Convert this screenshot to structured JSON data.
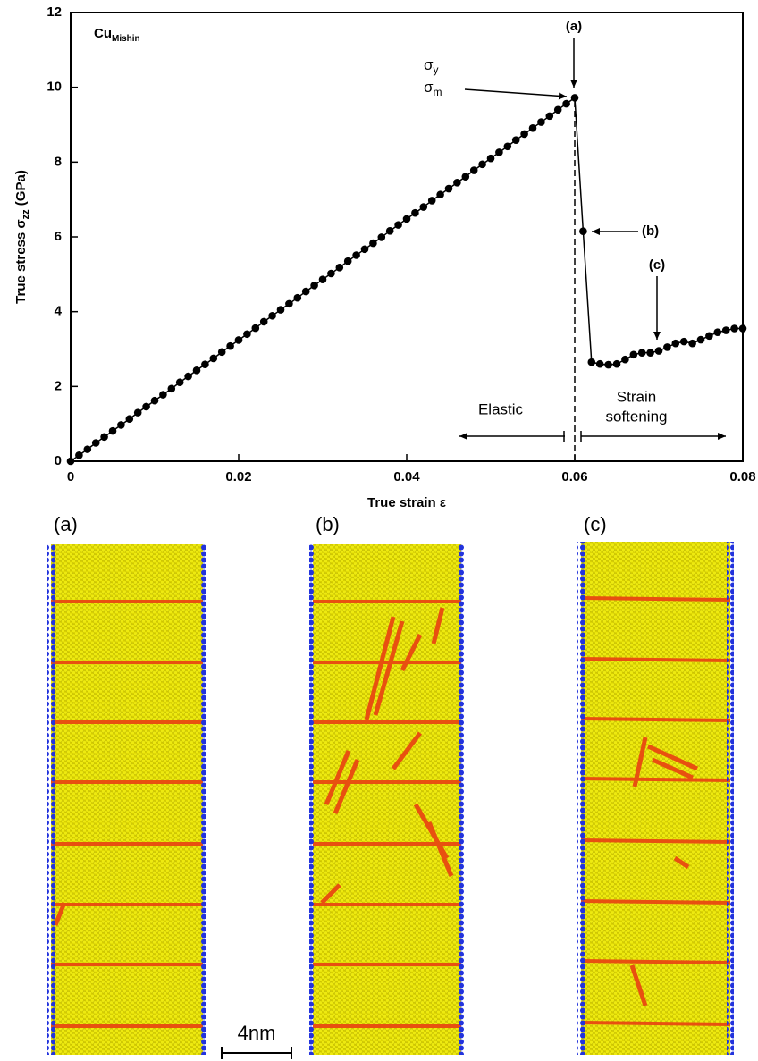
{
  "chart_data": {
    "type": "line",
    "x_label": {
      "main": "True strain ε"
    },
    "y_label": {
      "main": "True stress σ",
      "sub": "zz",
      "unit": "(GPa)"
    },
    "material": {
      "main": "Cu",
      "sub": "Mishin"
    },
    "x": [
      0,
      0.001,
      0.002,
      0.003,
      0.004,
      0.005,
      0.006,
      0.007,
      0.008,
      0.009,
      0.01,
      0.011,
      0.012,
      0.013,
      0.014,
      0.015,
      0.016,
      0.017,
      0.018,
      0.019,
      0.02,
      0.021,
      0.022,
      0.023,
      0.024,
      0.025,
      0.026,
      0.027,
      0.028,
      0.029,
      0.03,
      0.031,
      0.032,
      0.033,
      0.034,
      0.035,
      0.036,
      0.037,
      0.038,
      0.039,
      0.04,
      0.041,
      0.042,
      0.043,
      0.044,
      0.045,
      0.046,
      0.047,
      0.048,
      0.049,
      0.05,
      0.051,
      0.052,
      0.053,
      0.054,
      0.055,
      0.056,
      0.057,
      0.058,
      0.059,
      0.06,
      0.061,
      0.062,
      0.063,
      0.064,
      0.065,
      0.066,
      0.067,
      0.068,
      0.069,
      0.07,
      0.071,
      0.072,
      0.073,
      0.074,
      0.075,
      0.076,
      0.077,
      0.078,
      0.079,
      0.08
    ],
    "values": [
      0,
      0.16,
      0.32,
      0.49,
      0.65,
      0.81,
      0.97,
      1.13,
      1.3,
      1.46,
      1.62,
      1.78,
      1.94,
      2.11,
      2.27,
      2.43,
      2.59,
      2.75,
      2.92,
      3.08,
      3.24,
      3.4,
      3.56,
      3.73,
      3.89,
      4.05,
      4.21,
      4.37,
      4.54,
      4.7,
      4.86,
      5.02,
      5.18,
      5.35,
      5.51,
      5.67,
      5.83,
      5.99,
      6.16,
      6.32,
      6.48,
      6.64,
      6.8,
      6.97,
      7.13,
      7.29,
      7.45,
      7.61,
      7.78,
      7.94,
      8.1,
      8.26,
      8.42,
      8.59,
      8.75,
      8.91,
      9.07,
      9.23,
      9.4,
      9.56,
      9.72,
      6.15,
      2.65,
      2.6,
      2.58,
      2.6,
      2.72,
      2.85,
      2.9,
      2.9,
      2.95,
      3.05,
      3.15,
      3.2,
      3.15,
      3.25,
      3.35,
      3.45,
      3.5,
      3.55,
      3.55
    ],
    "color": "#000000",
    "xlim": [
      0,
      0.08
    ],
    "xticks": [
      0,
      0.02,
      0.04,
      0.06,
      0.08
    ],
    "ylim": [
      0,
      12
    ],
    "yticks": [
      0,
      2,
      4,
      6,
      8,
      10,
      12
    ],
    "divider_x": 0.06,
    "annotations": {
      "a": "(a)",
      "b": "(b)",
      "c": "(c)",
      "sigma": "σ",
      "sub_y": "y",
      "sub_m": "m",
      "elastic": "Elastic",
      "strain": "Strain",
      "softening": "softening"
    }
  },
  "panels": [
    {
      "label": "(a)"
    },
    {
      "label": "(b)"
    },
    {
      "label": "(c)"
    }
  ],
  "scale_bar": {
    "label": "4nm"
  }
}
